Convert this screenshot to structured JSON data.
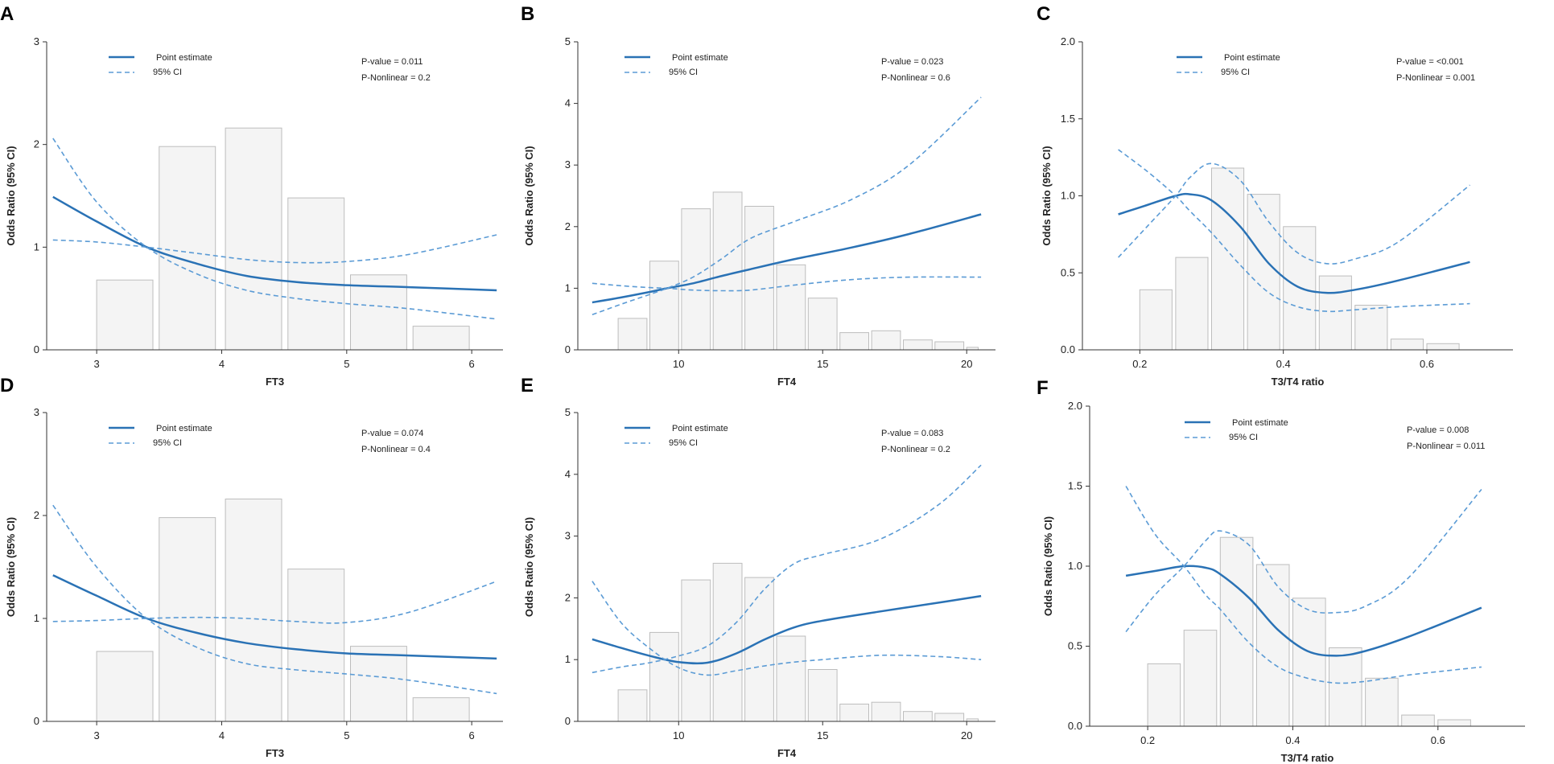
{
  "chart_data": [
    {
      "panel": "A",
      "type": "line",
      "xlabel": "FT3",
      "ylabel": "Odds Ratio (95% CI)",
      "xlim": [
        2.6,
        6.25
      ],
      "ylim": [
        0,
        3
      ],
      "xticks": [
        3,
        4,
        5,
        6
      ],
      "xtick_labels": [
        "3",
        "4",
        "5",
        "6"
      ],
      "yticks": [
        0,
        1,
        2,
        3
      ],
      "ytick_labels": [
        "0",
        "1",
        "2",
        "3"
      ],
      "legend": [
        "Point estimate",
        "95% CI"
      ],
      "annotations": [
        "P-value = 0.011",
        "P-Nonlinear = 0.2"
      ],
      "histogram": [
        {
          "x0": 3.0,
          "x1": 3.45,
          "h": 0.68
        },
        {
          "x0": 3.5,
          "x1": 3.95,
          "h": 1.98
        },
        {
          "x0": 4.03,
          "x1": 4.48,
          "h": 2.16
        },
        {
          "x0": 4.53,
          "x1": 4.98,
          "h": 1.48
        },
        {
          "x0": 5.03,
          "x1": 5.48,
          "h": 0.73
        },
        {
          "x0": 5.53,
          "x1": 5.98,
          "h": 0.23
        }
      ],
      "series": [
        {
          "name": "Point estimate",
          "x": [
            2.65,
            3.0,
            3.4,
            3.8,
            4.2,
            4.6,
            5.0,
            5.5,
            6.2
          ],
          "values": [
            1.49,
            1.25,
            1.0,
            0.84,
            0.72,
            0.66,
            0.63,
            0.61,
            0.58
          ]
        },
        {
          "name": "95% CI upper",
          "x": [
            2.65,
            3.0,
            3.4,
            3.8,
            4.2,
            4.6,
            5.0,
            5.5,
            6.2
          ],
          "values": [
            1.07,
            1.05,
            1.0,
            0.94,
            0.88,
            0.85,
            0.86,
            0.93,
            1.12
          ]
        },
        {
          "name": "95% CI lower",
          "x": [
            2.65,
            3.0,
            3.4,
            3.8,
            4.2,
            4.6,
            5.0,
            5.5,
            6.2
          ],
          "values": [
            2.06,
            1.44,
            1.0,
            0.74,
            0.58,
            0.5,
            0.45,
            0.4,
            0.3
          ]
        }
      ]
    },
    {
      "panel": "B",
      "type": "line",
      "xlabel": "FT4",
      "ylabel": "Odds Ratio (95% CI)",
      "xlim": [
        6.5,
        21.0
      ],
      "ylim": [
        0,
        5
      ],
      "xticks": [
        10,
        15,
        20
      ],
      "xtick_labels": [
        "10",
        "15",
        "20"
      ],
      "yticks": [
        0,
        1,
        2,
        3,
        4,
        5
      ],
      "ytick_labels": [
        "0",
        "1",
        "2",
        "3",
        "4",
        "5"
      ],
      "legend": [
        "Point estimate",
        "95% CI"
      ],
      "annotations": [
        "P-value = 0.023",
        "P-Nonlinear = 0.6"
      ],
      "histogram": [
        {
          "x0": 7.9,
          "x1": 8.9,
          "h": 0.51
        },
        {
          "x0": 9.0,
          "x1": 10.0,
          "h": 1.44
        },
        {
          "x0": 10.1,
          "x1": 11.1,
          "h": 2.29
        },
        {
          "x0": 11.2,
          "x1": 12.2,
          "h": 2.56
        },
        {
          "x0": 12.3,
          "x1": 13.3,
          "h": 2.33
        },
        {
          "x0": 13.4,
          "x1": 14.4,
          "h": 1.38
        },
        {
          "x0": 14.5,
          "x1": 15.5,
          "h": 0.84
        },
        {
          "x0": 15.6,
          "x1": 16.6,
          "h": 0.28
        },
        {
          "x0": 16.7,
          "x1": 17.7,
          "h": 0.31
        },
        {
          "x0": 17.8,
          "x1": 18.8,
          "h": 0.16
        },
        {
          "x0": 18.9,
          "x1": 19.9,
          "h": 0.13
        },
        {
          "x0": 20.0,
          "x1": 20.4,
          "h": 0.04
        }
      ],
      "series": [
        {
          "name": "Point estimate",
          "x": [
            7.0,
            8.0,
            9.0,
            9.6,
            10.5,
            11.5,
            12.5,
            14.0,
            16.0,
            18.0,
            20.5
          ],
          "values": [
            0.77,
            0.85,
            0.94,
            1.0,
            1.08,
            1.2,
            1.31,
            1.47,
            1.66,
            1.88,
            2.2
          ]
        },
        {
          "name": "95% CI upper",
          "x": [
            7.0,
            8.0,
            9.0,
            9.6,
            10.5,
            11.5,
            12.5,
            14.0,
            16.0,
            18.0,
            20.5
          ],
          "values": [
            0.57,
            0.74,
            0.9,
            1.0,
            1.18,
            1.48,
            1.81,
            2.08,
            2.44,
            3.0,
            4.1
          ]
        },
        {
          "name": "95% CI lower",
          "x": [
            7.0,
            8.0,
            9.0,
            9.6,
            10.5,
            11.5,
            12.5,
            14.0,
            16.0,
            18.0,
            20.5
          ],
          "values": [
            1.08,
            1.04,
            1.01,
            1.0,
            0.97,
            0.96,
            0.97,
            1.05,
            1.14,
            1.18,
            1.18
          ]
        }
      ]
    },
    {
      "panel": "C",
      "type": "line",
      "xlabel": "T3/T4 ratio",
      "ylabel": "Odds Ratio (95% CI)",
      "xlim": [
        0.12,
        0.72
      ],
      "ylim": [
        0,
        2.0
      ],
      "xticks": [
        0.2,
        0.4,
        0.6
      ],
      "xtick_labels": [
        "0.2",
        "0.4",
        "0.6"
      ],
      "yticks": [
        0,
        0.5,
        1.0,
        1.5,
        2.0
      ],
      "ytick_labels": [
        "0.0",
        "0.5",
        "1.0",
        "1.5",
        "2.0"
      ],
      "legend": [
        "Point estimate",
        "95% CI"
      ],
      "annotations": [
        "P-value = <0.001",
        "P-Nonlinear = 0.001"
      ],
      "histogram": [
        {
          "x0": 0.2,
          "x1": 0.245,
          "h": 0.39
        },
        {
          "x0": 0.25,
          "x1": 0.295,
          "h": 0.6
        },
        {
          "x0": 0.3,
          "x1": 0.345,
          "h": 1.18
        },
        {
          "x0": 0.35,
          "x1": 0.395,
          "h": 1.01
        },
        {
          "x0": 0.4,
          "x1": 0.445,
          "h": 0.8
        },
        {
          "x0": 0.45,
          "x1": 0.495,
          "h": 0.48
        },
        {
          "x0": 0.5,
          "x1": 0.545,
          "h": 0.29
        },
        {
          "x0": 0.55,
          "x1": 0.595,
          "h": 0.07
        },
        {
          "x0": 0.6,
          "x1": 0.645,
          "h": 0.04
        }
      ],
      "series": [
        {
          "name": "Point estimate",
          "x": [
            0.17,
            0.21,
            0.25,
            0.27,
            0.3,
            0.34,
            0.38,
            0.42,
            0.46,
            0.5,
            0.56,
            0.66
          ],
          "values": [
            0.88,
            0.94,
            1.0,
            1.01,
            0.97,
            0.8,
            0.56,
            0.41,
            0.37,
            0.39,
            0.45,
            0.57
          ]
        },
        {
          "name": "95% CI upper",
          "x": [
            0.17,
            0.21,
            0.25,
            0.27,
            0.3,
            0.34,
            0.38,
            0.42,
            0.46,
            0.5,
            0.56,
            0.66
          ],
          "values": [
            0.6,
            0.8,
            1.0,
            1.12,
            1.21,
            1.1,
            0.83,
            0.63,
            0.56,
            0.59,
            0.7,
            1.07
          ]
        },
        {
          "name": "95% CI lower",
          "x": [
            0.17,
            0.21,
            0.25,
            0.27,
            0.3,
            0.34,
            0.38,
            0.42,
            0.46,
            0.5,
            0.56,
            0.66
          ],
          "values": [
            1.3,
            1.16,
            1.0,
            0.9,
            0.76,
            0.55,
            0.37,
            0.28,
            0.25,
            0.26,
            0.28,
            0.3
          ]
        }
      ]
    },
    {
      "panel": "D",
      "type": "line",
      "xlabel": "FT3",
      "ylabel": "Odds Ratio (95% CI)",
      "xlim": [
        2.6,
        6.25
      ],
      "ylim": [
        0,
        3
      ],
      "xticks": [
        3,
        4,
        5,
        6
      ],
      "xtick_labels": [
        "3",
        "4",
        "5",
        "6"
      ],
      "yticks": [
        0,
        1,
        2,
        3
      ],
      "ytick_labels": [
        "0",
        "1",
        "2",
        "3"
      ],
      "legend": [
        "Point estimate",
        "95% CI"
      ],
      "annotations": [
        "P-value = 0.074",
        "P-Nonlinear = 0.4"
      ],
      "histogram": [
        {
          "x0": 3.0,
          "x1": 3.45,
          "h": 0.68
        },
        {
          "x0": 3.5,
          "x1": 3.95,
          "h": 1.98
        },
        {
          "x0": 4.03,
          "x1": 4.48,
          "h": 2.16
        },
        {
          "x0": 4.53,
          "x1": 4.98,
          "h": 1.48
        },
        {
          "x0": 5.03,
          "x1": 5.48,
          "h": 0.73
        },
        {
          "x0": 5.53,
          "x1": 5.98,
          "h": 0.23
        }
      ],
      "series": [
        {
          "name": "Point estimate",
          "x": [
            2.65,
            3.0,
            3.4,
            3.8,
            4.2,
            4.6,
            5.0,
            5.5,
            6.2
          ],
          "values": [
            1.42,
            1.22,
            1.0,
            0.86,
            0.76,
            0.7,
            0.66,
            0.64,
            0.61
          ]
        },
        {
          "name": "95% CI upper",
          "x": [
            2.65,
            3.0,
            3.4,
            3.8,
            4.2,
            4.6,
            5.0,
            5.5,
            6.2
          ],
          "values": [
            0.97,
            0.98,
            1.0,
            1.01,
            1.0,
            0.97,
            0.96,
            1.06,
            1.36
          ]
        },
        {
          "name": "95% CI lower",
          "x": [
            2.65,
            3.0,
            3.4,
            3.8,
            4.2,
            4.6,
            5.0,
            5.5,
            6.2
          ],
          "values": [
            2.1,
            1.5,
            1.0,
            0.72,
            0.56,
            0.5,
            0.46,
            0.4,
            0.27
          ]
        }
      ]
    },
    {
      "panel": "E",
      "type": "line",
      "xlabel": "FT4",
      "ylabel": "Odds Ratio (95% CI)",
      "xlim": [
        6.5,
        21.0
      ],
      "ylim": [
        0,
        5
      ],
      "xticks": [
        10,
        15,
        20
      ],
      "xtick_labels": [
        "10",
        "15",
        "20"
      ],
      "yticks": [
        0,
        1,
        2,
        3,
        4,
        5
      ],
      "ytick_labels": [
        "0",
        "1",
        "2",
        "3",
        "4",
        "5"
      ],
      "legend": [
        "Point estimate",
        "95% CI"
      ],
      "annotations": [
        "P-value = 0.083",
        "P-Nonlinear = 0.2"
      ],
      "histogram": [
        {
          "x0": 7.9,
          "x1": 8.9,
          "h": 0.51
        },
        {
          "x0": 9.0,
          "x1": 10.0,
          "h": 1.44
        },
        {
          "x0": 10.1,
          "x1": 11.1,
          "h": 2.29
        },
        {
          "x0": 11.2,
          "x1": 12.2,
          "h": 2.56
        },
        {
          "x0": 12.3,
          "x1": 13.3,
          "h": 2.33
        },
        {
          "x0": 13.4,
          "x1": 14.4,
          "h": 1.38
        },
        {
          "x0": 14.5,
          "x1": 15.5,
          "h": 0.84
        },
        {
          "x0": 15.6,
          "x1": 16.6,
          "h": 0.28
        },
        {
          "x0": 16.7,
          "x1": 17.7,
          "h": 0.31
        },
        {
          "x0": 17.8,
          "x1": 18.8,
          "h": 0.16
        },
        {
          "x0": 18.9,
          "x1": 19.9,
          "h": 0.13
        },
        {
          "x0": 20.0,
          "x1": 20.4,
          "h": 0.04
        }
      ],
      "series": [
        {
          "name": "Point estimate",
          "x": [
            7.0,
            8.0,
            9.0,
            10.0,
            11.0,
            12.0,
            13.0,
            14.0,
            15.0,
            17.0,
            19.0,
            20.5
          ],
          "values": [
            1.33,
            1.19,
            1.06,
            0.96,
            0.95,
            1.1,
            1.33,
            1.52,
            1.63,
            1.78,
            1.92,
            2.03
          ]
        },
        {
          "name": "95% CI upper",
          "x": [
            7.0,
            8.0,
            9.0,
            10.0,
            11.0,
            12.0,
            13.0,
            14.0,
            15.0,
            17.0,
            19.0,
            20.5
          ],
          "values": [
            0.79,
            0.88,
            0.95,
            1.06,
            1.22,
            1.6,
            2.15,
            2.55,
            2.7,
            2.95,
            3.5,
            4.15
          ]
        },
        {
          "name": "95% CI lower",
          "x": [
            7.0,
            8.0,
            9.0,
            10.0,
            11.0,
            12.0,
            13.0,
            14.0,
            15.0,
            17.0,
            19.0,
            20.5
          ],
          "values": [
            2.27,
            1.6,
            1.18,
            0.87,
            0.75,
            0.82,
            0.9,
            0.96,
            1.0,
            1.07,
            1.05,
            1.0
          ]
        }
      ]
    },
    {
      "panel": "F",
      "type": "line",
      "xlabel": "T3/T4 ratio",
      "ylabel": "Odds Ratio (95% CI)",
      "xlim": [
        0.12,
        0.72
      ],
      "ylim": [
        0,
        2.0
      ],
      "xticks": [
        0.2,
        0.4,
        0.6
      ],
      "xtick_labels": [
        "0.2",
        "0.4",
        "0.6"
      ],
      "yticks": [
        0,
        0.5,
        1.0,
        1.5,
        2.0
      ],
      "ytick_labels": [
        "0.0",
        "0.5",
        "1.0",
        "1.5",
        "2.0"
      ],
      "legend": [
        "Point estimate",
        "95% CI"
      ],
      "annotations": [
        "P-value = 0.008",
        "P-Nonlinear = 0.011"
      ],
      "histogram": [
        {
          "x0": 0.2,
          "x1": 0.245,
          "h": 0.39
        },
        {
          "x0": 0.25,
          "x1": 0.295,
          "h": 0.6
        },
        {
          "x0": 0.3,
          "x1": 0.345,
          "h": 1.18
        },
        {
          "x0": 0.35,
          "x1": 0.395,
          "h": 1.01
        },
        {
          "x0": 0.4,
          "x1": 0.445,
          "h": 0.8
        },
        {
          "x0": 0.45,
          "x1": 0.495,
          "h": 0.49
        },
        {
          "x0": 0.5,
          "x1": 0.545,
          "h": 0.3
        },
        {
          "x0": 0.55,
          "x1": 0.595,
          "h": 0.07
        },
        {
          "x0": 0.6,
          "x1": 0.645,
          "h": 0.04
        }
      ],
      "series": [
        {
          "name": "Point estimate",
          "x": [
            0.17,
            0.21,
            0.25,
            0.28,
            0.3,
            0.34,
            0.38,
            0.42,
            0.46,
            0.5,
            0.56,
            0.66
          ],
          "values": [
            0.94,
            0.97,
            1.0,
            0.99,
            0.95,
            0.8,
            0.6,
            0.47,
            0.44,
            0.47,
            0.56,
            0.74
          ]
        },
        {
          "name": "95% CI upper",
          "x": [
            0.17,
            0.21,
            0.25,
            0.28,
            0.3,
            0.34,
            0.38,
            0.42,
            0.46,
            0.5,
            0.56,
            0.66
          ],
          "values": [
            0.59,
            0.82,
            1.0,
            1.16,
            1.22,
            1.13,
            0.87,
            0.73,
            0.71,
            0.75,
            0.93,
            1.48
          ]
        },
        {
          "name": "95% CI lower",
          "x": [
            0.17,
            0.21,
            0.25,
            0.28,
            0.3,
            0.34,
            0.38,
            0.42,
            0.46,
            0.5,
            0.56,
            0.66
          ],
          "values": [
            1.5,
            1.2,
            1.0,
            0.82,
            0.73,
            0.52,
            0.37,
            0.3,
            0.27,
            0.28,
            0.32,
            0.37
          ]
        }
      ]
    }
  ]
}
